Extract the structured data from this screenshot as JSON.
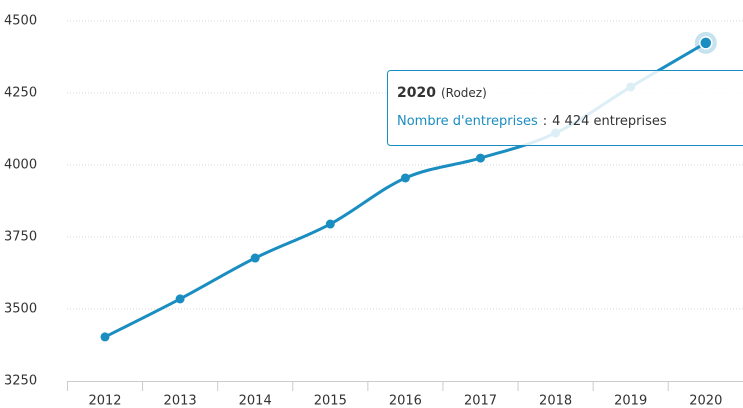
{
  "chart_data": {
    "type": "line",
    "categories": [
      "2012",
      "2013",
      "2014",
      "2015",
      "2016",
      "2017",
      "2018",
      "2019",
      "2020"
    ],
    "series": [
      {
        "name": "Nombre d'entreprises",
        "color": "#1a8dc1",
        "values": [
          3403,
          3535,
          3677,
          3795,
          3955,
          4024,
          4111,
          4271,
          4424
        ],
        "value_labels": [
          null,
          null,
          null,
          null,
          null,
          null,
          null,
          null,
          "4 424 entreprises"
        ]
      }
    ],
    "ylim": [
      3250,
      4500
    ],
    "yticks": [
      3250,
      3500,
      3750,
      4000,
      4250,
      4500
    ],
    "grid": true,
    "tooltip": {
      "index": 8,
      "subtitle": "(Rodez)",
      "separator": ":"
    }
  }
}
